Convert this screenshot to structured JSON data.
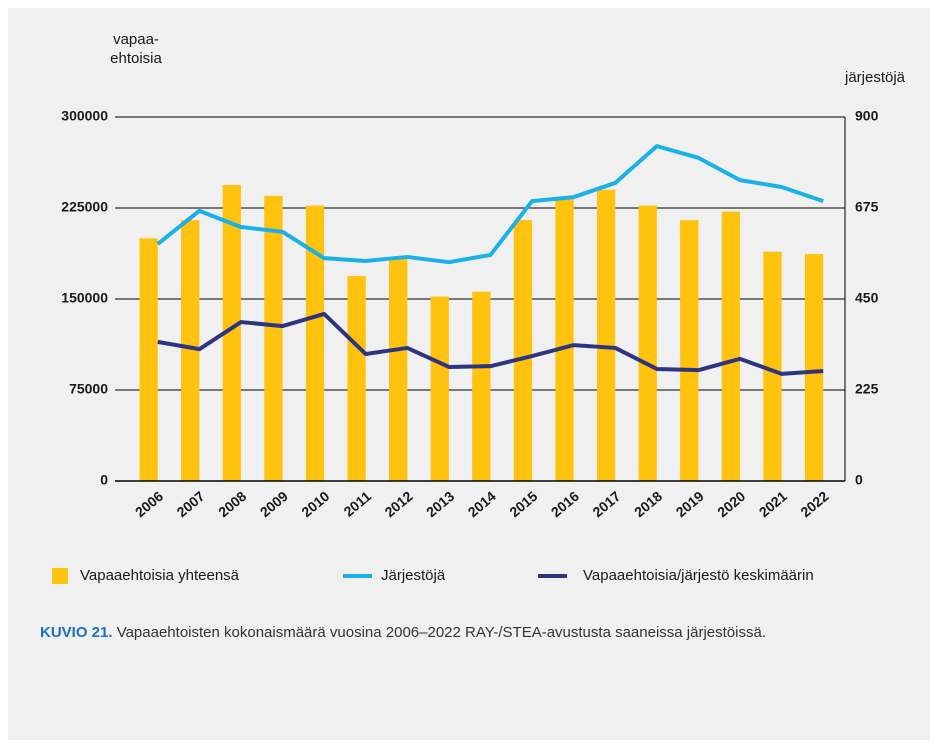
{
  "chart_data": {
    "type": "bar",
    "y_label": "vapaa-ehtoisia",
    "y2_label": "järjestöjä",
    "categories": [
      "2006",
      "2007",
      "2008",
      "2009",
      "2010",
      "2011",
      "2012",
      "2013",
      "2014",
      "2015",
      "2016",
      "2017",
      "2018",
      "2019",
      "2020",
      "2021",
      "2022"
    ],
    "series": [
      {
        "name": "Vapaaehtoisia yhteensä",
        "type": "bar",
        "color": "#ffc20e",
        "axis": "y",
        "values": [
          200000,
          215000,
          244000,
          235000,
          227000,
          169000,
          183000,
          152000,
          156000,
          215000,
          232000,
          240000,
          227000,
          215000,
          222000,
          189000,
          187000
        ]
      },
      {
        "name": "Järjestöjä",
        "type": "line",
        "color": "#1ab0e8",
        "axis": "y2",
        "values": [
          586,
          668,
          628,
          616,
          551,
          544,
          554,
          541,
          559,
          692,
          702,
          737,
          828,
          799,
          744,
          727,
          692
        ]
      },
      {
        "name": "Vapaaehtoisia/järjestö keskimäärin",
        "type": "line",
        "color": "#2e3580",
        "axis": "y2",
        "values": [
          344,
          326,
          393,
          383,
          413,
          314,
          329,
          282,
          284,
          309,
          336,
          329,
          277,
          274,
          302,
          265,
          272
        ]
      }
    ],
    "ylim": [
      0,
      300000
    ],
    "yticks": [
      0,
      75000,
      150000,
      225000,
      300000
    ],
    "y2lim": [
      0,
      900
    ],
    "y2ticks": [
      0,
      225,
      450,
      675,
      900
    ],
    "grid": true,
    "caption_label": "KUVIO 21.",
    "caption_text": "Vapaaehtoisten kokonaismäärä vuosina 2006–2022 RAY-/STEA-avustusta saaneissa järjestöissä."
  }
}
